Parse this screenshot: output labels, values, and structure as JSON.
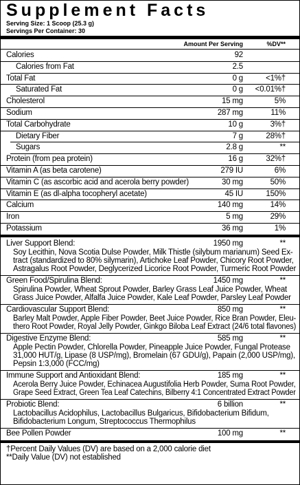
{
  "header": {
    "title": "Supplement Facts",
    "serving_size": "Serving Size: 1 Scoop (25.3 g)",
    "servings": "Servings Per Container: 30",
    "amount_heading": "Amount Per Serving",
    "dv_heading": "%DV**"
  },
  "nutrients": [
    {
      "name": "Calories",
      "amount": "92",
      "sub": [
        {
          "name": "Calories from Fat",
          "amount": "2.5"
        }
      ]
    },
    {
      "name": "Total Fat",
      "amount": "0 g",
      "dv": "<1%†",
      "sub": [
        {
          "name": "Saturated Fat",
          "amount": "0 g",
          "dv": "<0.01%†"
        }
      ]
    },
    {
      "name": "Cholesterol",
      "amount": "15 mg",
      "dv": "5%"
    },
    {
      "name": "Sodium",
      "amount": "287 mg",
      "dv": "11%"
    },
    {
      "name": "Total Carbohydrate",
      "amount": "10 g",
      "dv": "3%†",
      "sub": [
        {
          "name": "Dietary Fiber",
          "amount": "7 g",
          "dv": "28%†"
        },
        {
          "name": "Sugars",
          "amount": "2.8 g",
          "dv": "**"
        }
      ]
    },
    {
      "name": "Protein (from pea protein)",
      "amount": "16 g",
      "dv": "32%†"
    },
    {
      "name": "Vitamin A (as beta carotene)",
      "amount": "279 IU",
      "dv": "6%"
    },
    {
      "name": "Vitamin C (as ascorbic acid and acerola berry powder)",
      "amount": "30 mg",
      "dv": "50%"
    },
    {
      "name": "Vitamin E (as dl-alpha tocopheryl acetate)",
      "amount": "45 IU",
      "dv": "150%"
    },
    {
      "name": "Calcium",
      "amount": "140 mg",
      "dv": "14%"
    },
    {
      "name": "Iron",
      "amount": "5 mg",
      "dv": "29%"
    },
    {
      "name": "Potassium",
      "amount": "36 mg",
      "dv": "1%"
    }
  ],
  "blends": [
    {
      "name": "Liver Support Blend:",
      "amount": "1950 mg",
      "dv": "**",
      "ingredients": [
        "Soy Lecithin, Nova Scotia Dulse Powder, Milk Thistle (silybum marianum) Seed Ex-",
        "tract (standardized to 80% silymarin), Artichoke Leaf Powder, Chicory Root Powder,",
        "Astragalus Root Powder, Deglycerized Licorice Root Powder, Turmeric Root Powder"
      ]
    },
    {
      "name": "Green Food/Spirulina Blend:",
      "amount": "1450 mg",
      "dv": "**",
      "ingredients": [
        "Spirulina Powder, Wheat Sprout Powder, Barley Grass Leaf Juice Powder, Wheat",
        "Grass Juice Powder, Alfalfa Juice Powder, Kale Leaf Powder, Parsley Leaf Powder"
      ]
    },
    {
      "name": "Cardiovascular Support Blend:",
      "amount": "850 mg",
      "dv": "**",
      "ingredients": [
        "Barley Malt Powder, Apple Fiber Powder, Beet Juice Powder, Rice Bran Powder, Eleu-",
        "thero Root Powder, Royal Jelly Powder, Ginkgo Biloba Leaf Extract (24/6 total flavones)"
      ]
    },
    {
      "name": "Digestive Enzyme Blend:",
      "amount": "585 mg",
      "dv": "**",
      "ingredients": [
        "Apple Pectin Powder, Chlorella Powder, Pineapple Juice Powder, Fungal Protease",
        "31,000 HUT/g, Lipase (8 USP/mg), Bromelain (67 GDU/g), Papain (2,000 USP/mg),",
        "Pepsin 1:3,000 (FCC/mg)"
      ]
    },
    {
      "name": "Immune Support and Antioxidant Blend:",
      "amount": "185 mg",
      "dv": "**",
      "ingredients": [
        "Acerola Berry Juice Powder, Echinacea Augustifolia Herb Powder, Suma Root Powder,",
        "Grape Seed Extract, Green Tea Leaf Catechins, Bilberry 4:1 Concentrated Extract Powder"
      ]
    },
    {
      "name": "Probiotic Blend:",
      "amount": "6 billion",
      "dv": "**",
      "ingredients": [
        "Lactobacillus Acidophilus, Lactobacillus Bulgaricus, Bifidobacterium Bifidum,",
        "Bifidobacterium Longum, Streptococcus Thermophilus"
      ]
    },
    {
      "name": "Bee Pollen Powder",
      "amount": "100 mg",
      "dv": "**"
    }
  ],
  "footnotes": [
    "†Percent Daily Values (DV) are based on a 2,000 calorie diet",
    "**Daily Value (DV) not established"
  ]
}
